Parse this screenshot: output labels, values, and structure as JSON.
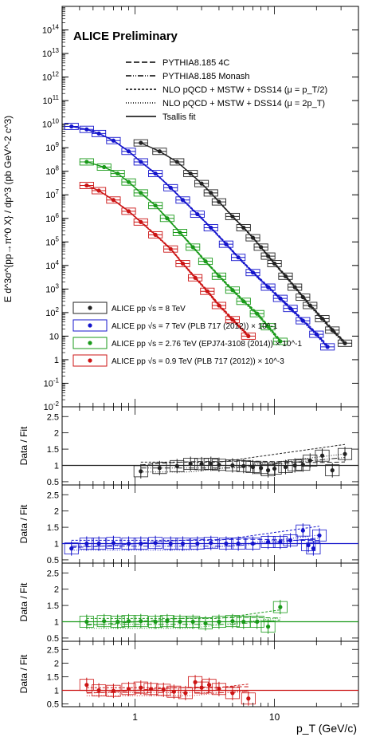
{
  "chart_data": {
    "type": "scatter",
    "title": "ALICE Preliminary",
    "xlabel": "p_T (GeV/c)",
    "ylabel_main": "E d^3σ^{pp→π^0 X} / dp^3 (pb GeV^-2 c^3)",
    "ylabel_ratio": "Data / Fit",
    "x_scale": "log",
    "xlim": [
      0.3,
      40
    ],
    "x_tick_labels": [
      "1",
      "10"
    ],
    "main_ylim": [
      0.01,
      1000000000000000.0
    ],
    "main_y_tick_labels": [
      "10^-2",
      "10^-1",
      "1",
      "10",
      "10^2",
      "10^3",
      "10^4",
      "10^5",
      "10^6",
      "10^7",
      "10^8",
      "10^9",
      "10^10",
      "10^11",
      "10^12",
      "10^13",
      "10^14"
    ],
    "ratio_ylim": [
      0.4,
      2.8
    ],
    "ratio_y_tick_labels": [
      "0.5",
      "1",
      "1.5",
      "2",
      "2.5"
    ],
    "theory_legend": [
      {
        "label": "PYTHIA8.185 4C",
        "style": "dashed"
      },
      {
        "label": "PYTHIA8.185 Monash",
        "style": "dashdotdot"
      },
      {
        "label": "NLO pQCD + MSTW + DSS14 (μ = p_T/2)",
        "style": "shortdash"
      },
      {
        "label": "NLO pQCD + MSTW + DSS14 (μ = 2p_T)",
        "style": "dotted"
      },
      {
        "label": "Tsallis fit",
        "style": "solid"
      }
    ],
    "data_legend": [
      {
        "label": "ALICE pp √s = 8 TeV",
        "color": "#222222"
      },
      {
        "label": "ALICE pp √s = 7 TeV (PLB 717 (2012)) × 10^-1",
        "color": "#1414cc"
      },
      {
        "label": "ALICE pp √s = 2.76 TeV (EPJ74-3108 (2014)) × 10^-1",
        "color": "#1a9a1a"
      },
      {
        "label": "ALICE pp √s = 0.9 TeV (PLB 717 (2012)) × 10^-3",
        "color": "#cc1414"
      }
    ],
    "series": [
      {
        "name": "ALICE pp √s = 8 TeV",
        "color": "#222222",
        "x": [
          1.1,
          1.5,
          2.0,
          2.5,
          3.0,
          3.5,
          4.0,
          5.0,
          6.0,
          7.0,
          8.0,
          9.0,
          10.0,
          12.0,
          14.0,
          16.0,
          18.0,
          22.0,
          26.0,
          32.0
        ],
        "y": [
          1600000000.0,
          700000000.0,
          250000000.0,
          80000000.0,
          30000000.0,
          12000000.0,
          5000000.0,
          1200000.0,
          400000.0,
          150000.0,
          60000.0,
          25000.0,
          12000.0,
          3500.0,
          1200.0,
          450.0,
          200.0,
          55,
          18,
          5
        ],
        "ratio_x": [
          1.1,
          1.5,
          2.0,
          2.5,
          3.0,
          3.5,
          4.0,
          5.0,
          6.0,
          7.0,
          8.0,
          9.0,
          10.0,
          12.0,
          14.0,
          16.0,
          18.0,
          22.0,
          26.0,
          32.0
        ],
        "ratio": [
          0.82,
          0.92,
          0.98,
          1.05,
          1.04,
          1.05,
          1.02,
          1.0,
          0.98,
          0.95,
          0.92,
          0.85,
          0.9,
          0.95,
          1.0,
          1.02,
          1.15,
          1.3,
          0.85,
          1.35
        ]
      },
      {
        "name": "ALICE pp √s = 7 TeV (PLB 717 (2012)) × 10^-1",
        "color": "#1414cc",
        "x": [
          0.35,
          0.45,
          0.55,
          0.7,
          0.9,
          1.1,
          1.4,
          1.8,
          2.2,
          2.8,
          3.5,
          4.5,
          5.5,
          7.0,
          9.0,
          11.0,
          13.0,
          16.0,
          20.0,
          24.0
        ],
        "y": [
          8000000000.0,
          6000000000.0,
          4000000000.0,
          2000000000.0,
          700000000.0,
          250000000.0,
          80000000.0,
          20000000.0,
          6000000.0,
          1500000.0,
          400000.0,
          80000.0,
          22000.0,
          5000.0,
          1200.0,
          400.0,
          150.0,
          45,
          12,
          3.5
        ],
        "ratio_x": [
          0.35,
          0.45,
          0.55,
          0.7,
          0.9,
          1.1,
          1.4,
          1.8,
          2.2,
          2.8,
          3.5,
          4.5,
          5.5,
          7.0,
          9.0,
          11.0,
          13.0,
          16.0,
          17.5,
          19.0,
          21.0
        ],
        "ratio": [
          0.85,
          1.0,
          1.0,
          1.02,
          1.0,
          1.0,
          1.02,
          1.0,
          1.0,
          1.0,
          1.02,
          1.0,
          1.0,
          1.0,
          1.05,
          1.05,
          1.1,
          1.4,
          0.95,
          0.85,
          1.25
        ]
      },
      {
        "name": "ALICE pp √s = 2.76 TeV (EPJ74-3108 (2014)) × 10^-1",
        "color": "#1a9a1a",
        "x": [
          0.45,
          0.6,
          0.75,
          0.9,
          1.1,
          1.4,
          1.7,
          2.1,
          2.6,
          3.2,
          4.0,
          5.0,
          6.0,
          7.5,
          9.0,
          11.0
        ],
        "y": [
          250000000.0,
          150000000.0,
          80000000.0,
          35000000.0,
          12000000.0,
          3500000.0,
          1000000.0,
          250000.0,
          60000.0,
          15000.0,
          3500.0,
          900.0,
          300.0,
          90,
          25,
          6
        ],
        "ratio_x": [
          0.45,
          0.6,
          0.75,
          0.9,
          1.1,
          1.4,
          1.7,
          2.1,
          2.6,
          3.2,
          4.0,
          5.0,
          6.0,
          7.5,
          9.0,
          11.0
        ],
        "ratio": [
          1.0,
          1.02,
          1.0,
          1.02,
          1.02,
          1.0,
          1.02,
          1.0,
          1.0,
          0.95,
          1.0,
          1.02,
          1.0,
          1.0,
          0.85,
          1.45
        ]
      },
      {
        "name": "ALICE pp √s = 0.9 TeV (PLB 717 (2012)) × 10^-3",
        "color": "#cc1414",
        "x": [
          0.45,
          0.55,
          0.7,
          0.9,
          1.1,
          1.4,
          1.8,
          2.2,
          2.7,
          3.3,
          4.0,
          5.0,
          6.5
        ],
        "y": [
          25000000.0,
          15000000.0,
          6000000.0,
          2000000.0,
          700000.0,
          200000.0,
          50000.0,
          12000.0,
          3000.0,
          800.0,
          200.0,
          50,
          10
        ],
        "ratio_x": [
          0.45,
          0.55,
          0.7,
          0.9,
          1.1,
          1.3,
          1.6,
          1.9,
          2.3,
          2.7,
          3.0,
          3.4,
          4.0,
          5.0,
          6.5
        ],
        "ratio": [
          1.2,
          1.0,
          0.98,
          1.05,
          1.1,
          1.05,
          1.02,
          0.95,
          0.9,
          1.3,
          1.1,
          1.2,
          1.05,
          0.9,
          0.7
        ]
      }
    ]
  }
}
